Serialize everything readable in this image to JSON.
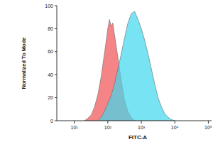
{
  "chart_data": {
    "type": "area",
    "log": "x",
    "xlabel": "FITC-A",
    "ylabel": "Normalized To Mode",
    "xlim": [
      3,
      125000
    ],
    "xticks": [
      {
        "value": 10,
        "label": "10¹"
      },
      {
        "value": 100,
        "label": "10²"
      },
      {
        "value": 1000,
        "label": "10³"
      },
      {
        "value": 10000,
        "label": "10⁴"
      },
      {
        "value": 100000,
        "label": "10⁵"
      }
    ],
    "ylim": [
      0,
      100
    ],
    "yticks": [
      0,
      20,
      40,
      60,
      80,
      100
    ],
    "series": [
      {
        "color": "#f4777a",
        "x": [
          20,
          25,
          32,
          40,
          50,
          63,
          79,
          100,
          112,
          126,
          141,
          158,
          200,
          251,
          316,
          398,
          501,
          631
        ],
        "values": [
          0,
          2,
          5,
          12,
          22,
          38,
          58,
          80,
          88,
          82,
          85,
          75,
          55,
          35,
          18,
          8,
          3,
          0
        ]
      },
      {
        "color": "#3fd8ee",
        "x": [
          50,
          63,
          79,
          100,
          126,
          158,
          200,
          251,
          316,
          398,
          501,
          631,
          794,
          1000,
          1259,
          1585,
          1995,
          2512,
          3162,
          3981,
          5012,
          6310,
          7943,
          10000
        ],
        "values": [
          0,
          3,
          8,
          15,
          22,
          32,
          45,
          58,
          72,
          85,
          93,
          95,
          88,
          80,
          70,
          58,
          45,
          32,
          20,
          12,
          6,
          3,
          1,
          0
        ]
      }
    ]
  }
}
